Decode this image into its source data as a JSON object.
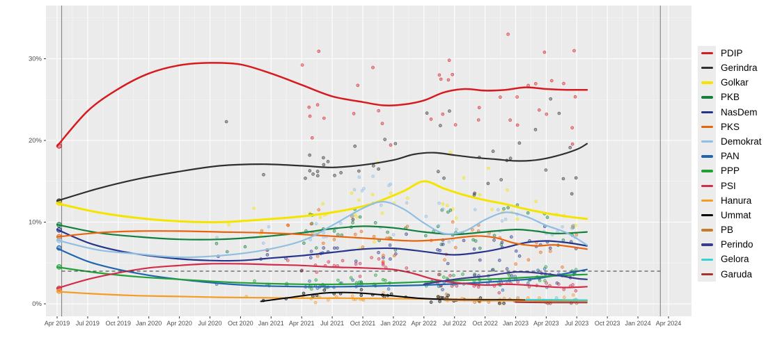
{
  "chart_data": {
    "type": "scatter",
    "subtype": "opinion-polling-trend-lines-with-poll-points",
    "title": "",
    "x_axis": {
      "labels": [
        "Apr 2019",
        "Jul 2019",
        "Oct 2019",
        "Jan 2020",
        "Apr 2020",
        "Jul 2020",
        "Oct 2020",
        "Jan 2021",
        "Apr 2021",
        "Jul 2021",
        "Oct 2021",
        "Jan 2022",
        "Apr 2022",
        "Jul 2022",
        "Oct 2022",
        "Jan 2023",
        "Apr 2023",
        "Jul 2023",
        "Oct 2023",
        "Jan 2024",
        "Apr 2024"
      ],
      "months_per_tick": 3,
      "range_months": [
        0,
        60
      ]
    },
    "y_axis": {
      "labels": [
        "0%",
        "10%",
        "20%",
        "30%"
      ],
      "values": [
        0,
        10,
        20,
        30
      ],
      "minor_values": [
        5,
        15,
        25,
        35
      ],
      "max": 36.5,
      "unit": "%"
    },
    "threshold_line": {
      "value": 4,
      "style": "dashed"
    },
    "event_lines": [
      {
        "name": "election-2019",
        "t": 0.45
      },
      {
        "name": "election-2024",
        "t": 59.2
      }
    ],
    "trend_end_month": 52,
    "series": [
      {
        "name": "PDIP",
        "key": "pdip",
        "color": "#D71A20",
        "width": 2.5,
        "result_2019": 19.33,
        "scatter_prob": 0.78,
        "trend": [
          [
            0,
            19.3
          ],
          [
            3,
            23.6
          ],
          [
            6,
            26.3
          ],
          [
            9,
            28.2
          ],
          [
            12,
            29.2
          ],
          [
            15,
            29.5
          ],
          [
            18,
            29.3
          ],
          [
            21,
            28.2
          ],
          [
            24,
            26.8
          ],
          [
            27,
            25.4
          ],
          [
            30,
            24.7
          ],
          [
            32,
            24.3
          ],
          [
            34,
            24.4
          ],
          [
            36,
            24.9
          ],
          [
            38,
            25.9
          ],
          [
            40,
            26.3
          ],
          [
            42,
            26.1
          ],
          [
            44,
            26.2
          ],
          [
            46,
            26.5
          ],
          [
            48,
            26.3
          ],
          [
            50,
            26.2
          ],
          [
            52,
            26.2
          ]
        ]
      },
      {
        "name": "Gerindra",
        "key": "gerindra",
        "color": "#2F2F2F",
        "width": 2.2,
        "result_2019": 12.57,
        "scatter_prob": 0.78,
        "trend": [
          [
            0,
            12.6
          ],
          [
            4,
            14.1
          ],
          [
            8,
            15.3
          ],
          [
            12,
            16.2
          ],
          [
            16,
            16.9
          ],
          [
            20,
            17.1
          ],
          [
            24,
            16.9
          ],
          [
            27,
            16.7
          ],
          [
            30,
            17.0
          ],
          [
            33,
            17.6
          ],
          [
            35,
            18.3
          ],
          [
            37,
            18.5
          ],
          [
            39,
            18.2
          ],
          [
            41,
            17.9
          ],
          [
            43,
            17.7
          ],
          [
            45,
            17.5
          ],
          [
            47,
            17.6
          ],
          [
            49,
            18.1
          ],
          [
            51,
            18.9
          ],
          [
            52,
            19.6
          ]
        ]
      },
      {
        "name": "Golkar",
        "key": "golkar",
        "color": "#F5E400",
        "width": 3,
        "result_2019": 12.31,
        "scatter_prob": 0.78,
        "trend": [
          [
            0,
            12.3
          ],
          [
            4,
            11.2
          ],
          [
            8,
            10.5
          ],
          [
            12,
            10.1
          ],
          [
            16,
            10.0
          ],
          [
            20,
            10.3
          ],
          [
            24,
            10.7
          ],
          [
            28,
            11.4
          ],
          [
            31,
            12.3
          ],
          [
            34,
            13.8
          ],
          [
            36,
            15.0
          ],
          [
            38,
            14.1
          ],
          [
            40,
            13.3
          ],
          [
            42,
            12.7
          ],
          [
            44,
            12.2
          ],
          [
            46,
            11.6
          ],
          [
            48,
            11.1
          ],
          [
            50,
            10.7
          ],
          [
            52,
            10.4
          ]
        ]
      },
      {
        "name": "PKB",
        "key": "pkb",
        "color": "#12803C",
        "width": 2.2,
        "result_2019": 9.69,
        "scatter_prob": 0.78,
        "trend": [
          [
            0,
            9.7
          ],
          [
            4,
            8.7
          ],
          [
            8,
            8.2
          ],
          [
            12,
            7.9
          ],
          [
            16,
            7.9
          ],
          [
            20,
            8.2
          ],
          [
            24,
            8.7
          ],
          [
            27,
            9.2
          ],
          [
            30,
            9.5
          ],
          [
            33,
            9.3
          ],
          [
            36,
            8.8
          ],
          [
            39,
            8.5
          ],
          [
            42,
            8.8
          ],
          [
            45,
            9.1
          ],
          [
            47,
            8.9
          ],
          [
            49,
            8.6
          ],
          [
            52,
            8.8
          ]
        ]
      },
      {
        "name": "NasDem",
        "key": "nasdem",
        "color": "#27348B",
        "width": 2.2,
        "result_2019": 9.05,
        "scatter_prob": 0.78,
        "trend": [
          [
            0,
            9.1
          ],
          [
            3,
            7.5
          ],
          [
            6,
            6.5
          ],
          [
            9,
            5.9
          ],
          [
            12,
            5.5
          ],
          [
            15,
            5.3
          ],
          [
            18,
            5.3
          ],
          [
            21,
            5.6
          ],
          [
            24,
            5.9
          ],
          [
            27,
            6.3
          ],
          [
            30,
            6.7
          ],
          [
            33,
            6.8
          ],
          [
            36,
            6.4
          ],
          [
            39,
            6.0
          ],
          [
            42,
            6.4
          ],
          [
            44,
            6.9
          ],
          [
            46,
            7.5
          ],
          [
            48,
            7.7
          ],
          [
            50,
            7.5
          ],
          [
            52,
            7.1
          ]
        ]
      },
      {
        "name": "PKS",
        "key": "pks",
        "color": "#E8640D",
        "width": 2.2,
        "result_2019": 8.21,
        "scatter_prob": 0.78,
        "trend": [
          [
            0,
            8.2
          ],
          [
            4,
            8.7
          ],
          [
            8,
            8.9
          ],
          [
            12,
            8.9
          ],
          [
            16,
            8.8
          ],
          [
            20,
            8.7
          ],
          [
            24,
            8.5
          ],
          [
            28,
            8.2
          ],
          [
            32,
            7.9
          ],
          [
            35,
            7.7
          ],
          [
            38,
            7.9
          ],
          [
            41,
            8.3
          ],
          [
            43,
            8.1
          ],
          [
            45,
            7.4
          ],
          [
            47,
            7.1
          ],
          [
            49,
            7.2
          ],
          [
            52,
            6.7
          ]
        ]
      },
      {
        "name": "Demokrat",
        "key": "demokrat",
        "color": "#8FBEE3",
        "width": 2.2,
        "result_2019": 7.77,
        "scatter_prob": 0.78,
        "trend": [
          [
            0,
            7.8
          ],
          [
            4,
            6.6
          ],
          [
            8,
            6.1
          ],
          [
            12,
            5.7
          ],
          [
            16,
            5.9
          ],
          [
            20,
            6.5
          ],
          [
            24,
            7.7
          ],
          [
            27,
            9.6
          ],
          [
            30,
            11.7
          ],
          [
            32,
            12.5
          ],
          [
            34,
            11.6
          ],
          [
            36,
            9.9
          ],
          [
            38,
            8.6
          ],
          [
            40,
            8.9
          ],
          [
            42,
            10.3
          ],
          [
            44,
            11.2
          ],
          [
            46,
            10.7
          ],
          [
            48,
            9.6
          ],
          [
            50,
            8.7
          ],
          [
            52,
            7.2
          ]
        ]
      },
      {
        "name": "PAN",
        "key": "pan",
        "color": "#2166AC",
        "width": 2.2,
        "result_2019": 6.84,
        "scatter_prob": 0.78,
        "trend": [
          [
            0,
            6.8
          ],
          [
            3,
            5.2
          ],
          [
            6,
            4.2
          ],
          [
            9,
            3.5
          ],
          [
            12,
            3.0
          ],
          [
            16,
            2.5
          ],
          [
            20,
            2.2
          ],
          [
            24,
            2.1
          ],
          [
            28,
            2.1
          ],
          [
            32,
            2.2
          ],
          [
            36,
            2.3
          ],
          [
            40,
            2.5
          ],
          [
            44,
            2.8
          ],
          [
            47,
            3.1
          ],
          [
            49,
            3.5
          ],
          [
            52,
            4.2
          ]
        ]
      },
      {
        "name": "PPP",
        "key": "ppp",
        "color": "#21A038",
        "width": 2.2,
        "result_2019": 4.52,
        "scatter_prob": 0.78,
        "trend": [
          [
            0,
            4.5
          ],
          [
            4,
            3.8
          ],
          [
            8,
            3.3
          ],
          [
            12,
            3.0
          ],
          [
            16,
            2.7
          ],
          [
            20,
            2.5
          ],
          [
            24,
            2.4
          ],
          [
            28,
            2.4
          ],
          [
            32,
            2.5
          ],
          [
            36,
            2.7
          ],
          [
            40,
            2.9
          ],
          [
            44,
            3.1
          ],
          [
            47,
            3.3
          ],
          [
            50,
            3.5
          ],
          [
            52,
            3.6
          ]
        ]
      },
      {
        "name": "PSI",
        "key": "psi",
        "color": "#D22C4B",
        "width": 2.2,
        "result_2019": 1.89,
        "scatter_prob": 0.78,
        "trend": [
          [
            0,
            1.9
          ],
          [
            3,
            3.0
          ],
          [
            6,
            3.8
          ],
          [
            9,
            4.4
          ],
          [
            12,
            4.7
          ],
          [
            15,
            4.9
          ],
          [
            18,
            4.9
          ],
          [
            21,
            4.8
          ],
          [
            24,
            4.7
          ],
          [
            27,
            4.5
          ],
          [
            30,
            4.4
          ],
          [
            33,
            4.2
          ],
          [
            35,
            3.7
          ],
          [
            37,
            3.0
          ],
          [
            39,
            2.6
          ],
          [
            42,
            2.3
          ],
          [
            44,
            2.4
          ],
          [
            46,
            2.3
          ],
          [
            48,
            2.1
          ],
          [
            50,
            2.0
          ],
          [
            52,
            2.1
          ]
        ]
      },
      {
        "name": "Hanura",
        "key": "hanura",
        "color": "#F59C24",
        "width": 2.2,
        "result_2019": 1.54,
        "scatter_prob": 0.6,
        "trend": [
          [
            0,
            1.5
          ],
          [
            4,
            1.2
          ],
          [
            8,
            1.0
          ],
          [
            12,
            0.9
          ],
          [
            16,
            0.8
          ],
          [
            20,
            0.75
          ],
          [
            24,
            0.7
          ],
          [
            28,
            0.7
          ],
          [
            32,
            0.65
          ],
          [
            36,
            0.6
          ],
          [
            40,
            0.55
          ],
          [
            44,
            0.5
          ],
          [
            48,
            0.5
          ],
          [
            52,
            0.45
          ]
        ]
      },
      {
        "name": "Ummat",
        "key": "ummat",
        "color": "#000000",
        "width": 2,
        "scatter_prob": 0.5,
        "trend": [
          [
            20,
            0.3
          ],
          [
            23,
            0.8
          ],
          [
            26,
            1.3
          ],
          [
            28,
            1.4
          ],
          [
            30,
            1.3
          ],
          [
            32,
            1.1
          ],
          [
            34,
            0.85
          ],
          [
            36,
            0.65
          ],
          [
            38,
            0.55
          ],
          [
            40,
            0.5
          ],
          [
            42,
            0.5
          ],
          [
            44,
            0.5
          ],
          [
            46,
            0.45
          ]
        ]
      },
      {
        "name": "PB",
        "key": "pb",
        "color": "#C97B2D",
        "width": 2,
        "scatter_prob": 0.5,
        "trend": [
          [
            38,
            0.45
          ],
          [
            41,
            0.4
          ],
          [
            44,
            0.4
          ],
          [
            48,
            0.35
          ],
          [
            52,
            0.35
          ]
        ]
      },
      {
        "name": "Perindo",
        "key": "perindo",
        "color": "#3C3C8F",
        "width": 2.2,
        "scatter_prob": 0.65,
        "trend": [
          [
            36,
            2.4
          ],
          [
            39,
            3.0
          ],
          [
            42,
            3.4
          ],
          [
            45,
            3.9
          ],
          [
            47,
            3.8
          ],
          [
            49,
            3.5
          ],
          [
            51,
            3.1
          ],
          [
            52,
            3.0
          ]
        ]
      },
      {
        "name": "Gelora",
        "key": "gelora",
        "color": "#35D4D4",
        "width": 2.2,
        "scatter_prob": 0.5,
        "trend": [
          [
            46,
            0.5
          ],
          [
            48,
            0.5
          ],
          [
            50,
            0.45
          ],
          [
            52,
            0.45
          ]
        ]
      },
      {
        "name": "Garuda",
        "key": "garuda",
        "color": "#A63232",
        "width": 2,
        "scatter_prob": 0.45,
        "trend": [
          [
            45,
            0.2
          ],
          [
            48,
            0.15
          ],
          [
            52,
            0.15
          ]
        ]
      }
    ]
  },
  "colors": {
    "panel_background": "#EBEBEB",
    "grid": "#FFFFFF",
    "axis_text": "#4D4D4D",
    "tick": "#333333",
    "event_line": "#7A7A7A",
    "threshold_line": "#333333",
    "legend_key_background": "#ECECEC",
    "legend_text": "#000000"
  }
}
